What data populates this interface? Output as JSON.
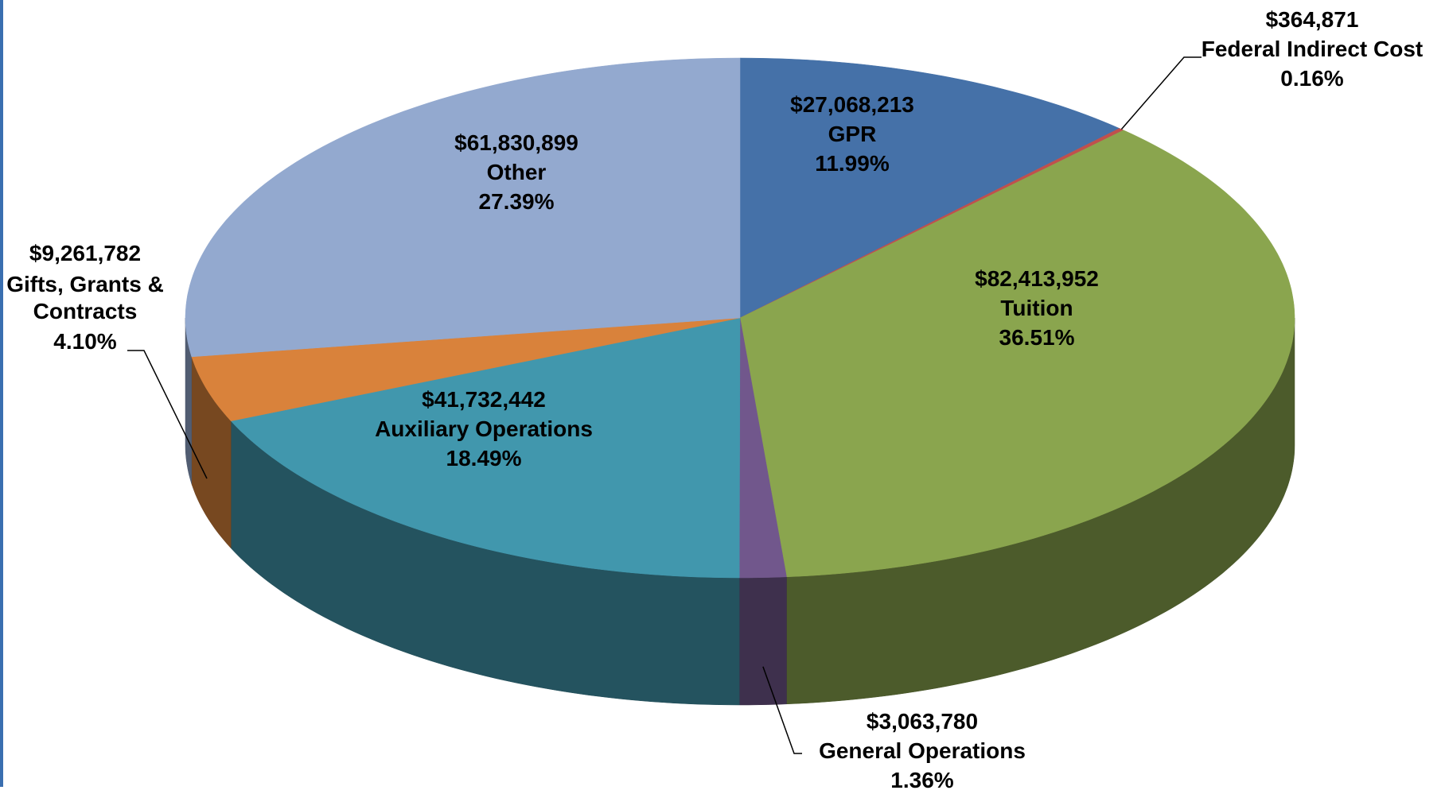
{
  "chart_data": {
    "type": "pie3d",
    "categories": [
      "GPR",
      "Federal Indirect Cost",
      "Tuition",
      "General Operations",
      "Auxiliary Operations",
      "Gifts, Grants & Contracts",
      "Other"
    ],
    "values": [
      27068213,
      364871,
      82413952,
      3063780,
      41732442,
      9261782,
      61830899
    ],
    "value_labels": [
      "$27,068,213",
      "$364,871",
      "$82,413,952",
      "$3,063,780",
      "$41,732,442",
      "$9,261,782",
      "$61,830,899"
    ],
    "percents": [
      11.99,
      0.16,
      36.51,
      1.36,
      18.49,
      4.1,
      27.39
    ],
    "percent_labels": [
      "11.99%",
      "0.16%",
      "36.51%",
      "1.36%",
      "18.49%",
      "4.10%",
      "27.39%"
    ],
    "colors": [
      "#4571a8",
      "#c0504d",
      "#8aa54e",
      "#71578c",
      "#4197ad",
      "#d9823b",
      "#93a9cf"
    ]
  }
}
